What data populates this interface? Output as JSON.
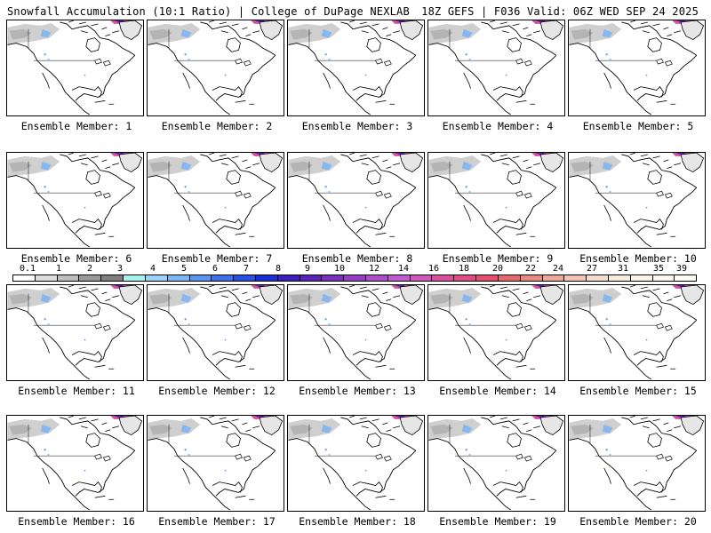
{
  "header": {
    "title_left": "Snowfall Accumulation (10:1 Ratio) | College of DuPage NEXLAB",
    "title_right": "18Z GEFS | F036 Valid: 06Z WED SEP 24 2025"
  },
  "panels": [
    {
      "label": "Ensemble Member: 1"
    },
    {
      "label": "Ensemble Member: 2"
    },
    {
      "label": "Ensemble Member: 3"
    },
    {
      "label": "Ensemble Member: 4"
    },
    {
      "label": "Ensemble Member: 5"
    },
    {
      "label": "Ensemble Member: 6"
    },
    {
      "label": "Ensemble Member: 7"
    },
    {
      "label": "Ensemble Member: 8"
    },
    {
      "label": "Ensemble Member: 9"
    },
    {
      "label": "Ensemble Member: 10"
    },
    {
      "label": "Ensemble Member: 11"
    },
    {
      "label": "Ensemble Member: 12"
    },
    {
      "label": "Ensemble Member: 13"
    },
    {
      "label": "Ensemble Member: 14"
    },
    {
      "label": "Ensemble Member: 15"
    },
    {
      "label": "Ensemble Member: 16"
    },
    {
      "label": "Ensemble Member: 17"
    },
    {
      "label": "Ensemble Member: 18"
    },
    {
      "label": "Ensemble Member: 19"
    },
    {
      "label": "Ensemble Member: 20"
    }
  ],
  "colorbar": {
    "ticks": [
      "0.1",
      "1",
      "2",
      "3",
      "4",
      "5",
      "6",
      "7",
      "8",
      "9",
      "10",
      "12",
      "14",
      "16",
      "18",
      "20",
      "22",
      "24",
      "27",
      "31",
      "35",
      "39"
    ],
    "colors": [
      "#ffffff",
      "#dcdcdc",
      "#bdbdbd",
      "#9a9a9a",
      "#7e7e7e",
      "#a6f0f0",
      "#9fd0f5",
      "#7db4f2",
      "#5b93ee",
      "#3f6fe6",
      "#2a4fdc",
      "#1a2fd0",
      "#3b1fb8",
      "#5a23b0",
      "#7a2fb8",
      "#9440c0",
      "#ab4ec8",
      "#c05ad0",
      "#cf58b8",
      "#d8509e",
      "#de4c84",
      "#e04f6e",
      "#e26a6a",
      "#e58a7e",
      "#eaa996",
      "#efc4b2",
      "#f4dccd",
      "#f8ecdf",
      "#fbf3e8",
      "#fdf8ef",
      "#fefcf6"
    ]
  },
  "legend_colors": {
    "land": "#ffffff",
    "snow_gray": "#c8c8c8",
    "snow_blue": "#5b93ee",
    "snow_purple": "#9440c0"
  }
}
